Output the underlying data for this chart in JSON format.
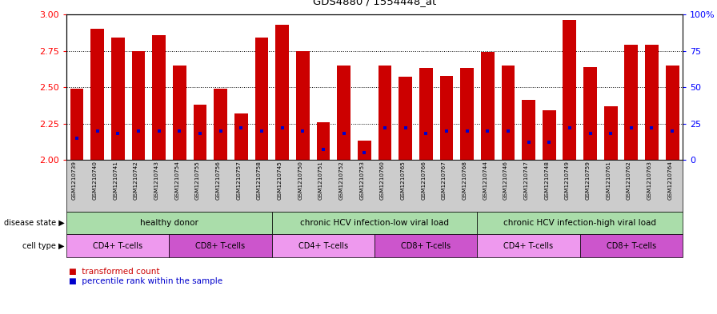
{
  "title": "GDS4880 / 1554448_at",
  "samples": [
    "GSM1210739",
    "GSM1210740",
    "GSM1210741",
    "GSM1210742",
    "GSM1210743",
    "GSM1210754",
    "GSM1210755",
    "GSM1210756",
    "GSM1210757",
    "GSM1210758",
    "GSM1210745",
    "GSM1210750",
    "GSM1210751",
    "GSM1210752",
    "GSM1210753",
    "GSM1210760",
    "GSM1210765",
    "GSM1210766",
    "GSM1210767",
    "GSM1210768",
    "GSM1210744",
    "GSM1210746",
    "GSM1210747",
    "GSM1210748",
    "GSM1210749",
    "GSM1210759",
    "GSM1210761",
    "GSM1210762",
    "GSM1210763",
    "GSM1210764"
  ],
  "transformed_count": [
    2.49,
    2.9,
    2.84,
    2.75,
    2.86,
    2.65,
    2.38,
    2.49,
    2.32,
    2.84,
    2.93,
    2.75,
    2.26,
    2.65,
    2.13,
    2.65,
    2.57,
    2.63,
    2.58,
    2.63,
    2.74,
    2.65,
    2.41,
    2.34,
    2.96,
    2.64,
    2.37,
    2.79,
    2.79,
    2.65
  ],
  "percentile_rank": [
    15,
    20,
    18,
    20,
    20,
    20,
    18,
    20,
    22,
    20,
    22,
    20,
    7,
    18,
    5,
    22,
    22,
    18,
    20,
    20,
    20,
    20,
    12,
    12,
    22,
    18,
    18,
    22,
    22,
    20
  ],
  "ylim_left": [
    2.0,
    3.0
  ],
  "ylim_right": [
    0,
    100
  ],
  "yticks_left": [
    2.0,
    2.25,
    2.5,
    2.75,
    3.0
  ],
  "yticks_right": [
    0,
    25,
    50,
    75,
    100
  ],
  "bar_color": "#cc0000",
  "blue_color": "#0000cc",
  "xtick_bg": "#cccccc",
  "disease_color": "#aaddaa",
  "cd4_color": "#ee99ee",
  "cd8_color": "#cc55cc",
  "disease_groups": [
    {
      "label": "healthy donor",
      "start": 0,
      "end": 9
    },
    {
      "label": "chronic HCV infection-low viral load",
      "start": 10,
      "end": 19
    },
    {
      "label": "chronic HCV infection-high viral load",
      "start": 20,
      "end": 29
    }
  ],
  "cell_type_groups": [
    {
      "label": "CD4+ T-cells",
      "start": 0,
      "end": 4
    },
    {
      "label": "CD8+ T-cells",
      "start": 5,
      "end": 9
    },
    {
      "label": "CD4+ T-cells",
      "start": 10,
      "end": 14
    },
    {
      "label": "CD8+ T-cells",
      "start": 15,
      "end": 19
    },
    {
      "label": "CD4+ T-cells",
      "start": 20,
      "end": 24
    },
    {
      "label": "CD8+ T-cells",
      "start": 25,
      "end": 29
    }
  ],
  "bar_width": 0.65,
  "n_bars": 30
}
